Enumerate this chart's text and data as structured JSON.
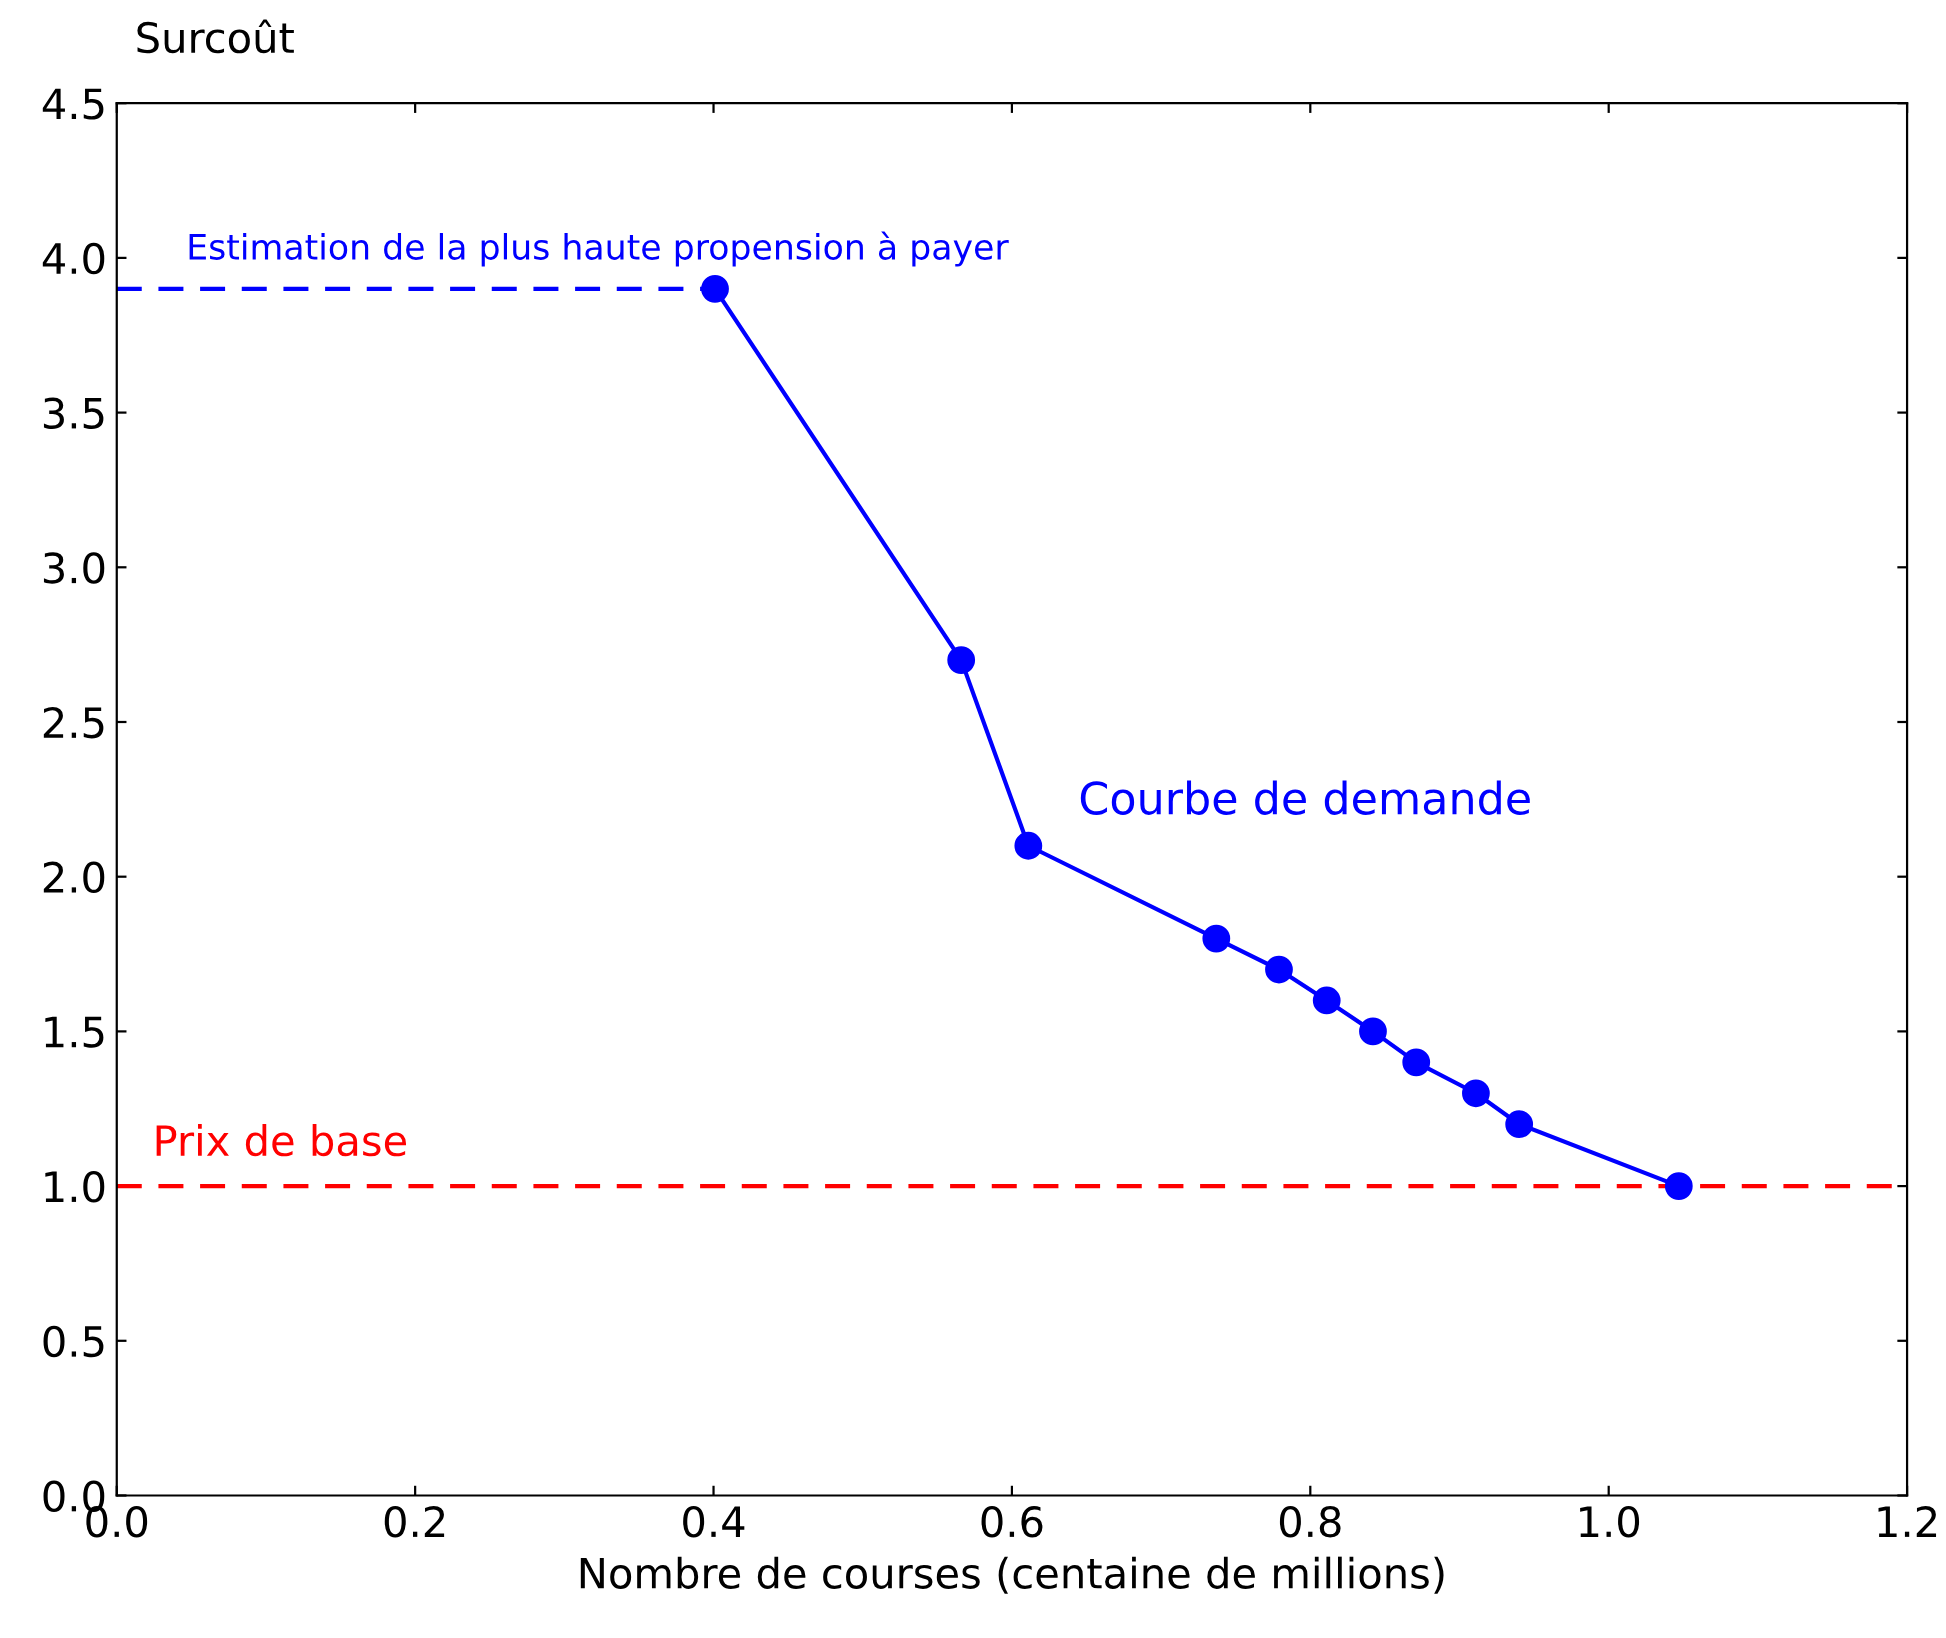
{
  "chart_data": {
    "type": "line",
    "ylabel": "Surcoût",
    "xlabel": "Nombre de courses (centaine de millions)",
    "xlim": [
      0.0,
      1.2
    ],
    "xticks": [
      {
        "value": 0,
        "label": "0.0"
      },
      0.2,
      0.4,
      0.6,
      0.8,
      {
        "value": 1,
        "label": "1.0"
      },
      1.2
    ],
    "ylim": [
      0.0,
      4.5
    ],
    "yticks": [
      {
        "value": 0,
        "label": "0.0"
      },
      0.5,
      {
        "value": 1,
        "label": "1.0"
      },
      1.5,
      {
        "value": 2,
        "label": "2.0"
      },
      2.5,
      {
        "value": 3,
        "label": "3.0"
      },
      3.5,
      {
        "value": 4,
        "label": "4.0"
      },
      4.5
    ],
    "grid": false,
    "legend": false,
    "series": [
      {
        "name": "Courbe de demande",
        "color": "#0000ff",
        "marker": "circle",
        "line_style": "solid",
        "x": [
          0.401,
          0.566,
          0.611,
          0.737,
          0.779,
          0.811,
          0.842,
          0.871,
          0.911,
          0.94,
          1.047
        ],
        "values": [
          3.9,
          2.7,
          2.1,
          1.8,
          1.7,
          1.6,
          1.5,
          1.4,
          1.3,
          1.2,
          1.0
        ]
      },
      {
        "name": "Estimation de la plus haute propension à payer",
        "color": "#0000ff",
        "marker": "none",
        "line_style": "dashed",
        "x": [
          0.0,
          0.401
        ],
        "values": [
          3.9,
          3.9
        ]
      }
    ],
    "ref_lines": [
      {
        "axis": "y",
        "value": 1.0,
        "label": "Prix de base",
        "color": "#ff0000",
        "line_style": "dashed"
      }
    ]
  }
}
